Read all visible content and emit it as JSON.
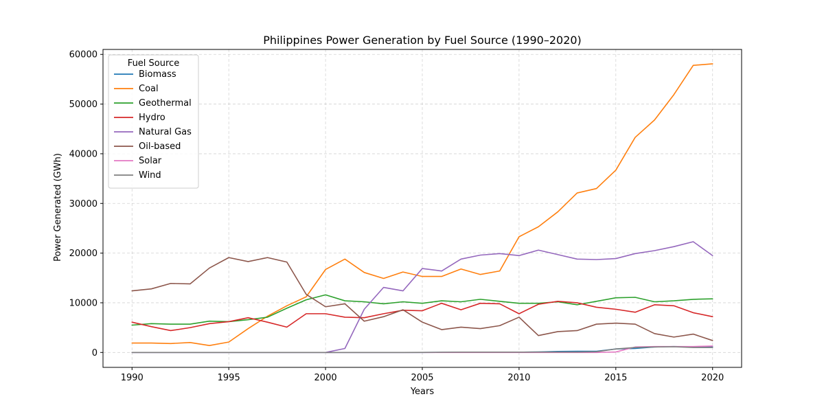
{
  "chart_data": {
    "type": "line",
    "title": "Philippines Power Generation by Fuel Source (1990–2020)",
    "xlabel": "Years",
    "ylabel": "Power Generated (GWh)",
    "xlim": [
      1988.5,
      2021.5
    ],
    "ylim": [
      -3000,
      61000
    ],
    "xticks": [
      1990,
      1995,
      2000,
      2005,
      2010,
      2015,
      2020
    ],
    "yticks": [
      0,
      10000,
      20000,
      30000,
      40000,
      50000,
      60000
    ],
    "grid": true,
    "legend": {
      "title": "Fuel Source",
      "placement": "top-left"
    },
    "x": [
      1990,
      1991,
      1992,
      1993,
      1994,
      1995,
      1996,
      1997,
      1998,
      1999,
      2000,
      2001,
      2002,
      2003,
      2004,
      2005,
      2006,
      2007,
      2008,
      2009,
      2010,
      2011,
      2012,
      2013,
      2014,
      2015,
      2016,
      2017,
      2018,
      2019,
      2020
    ],
    "series": [
      {
        "name": "Biomass",
        "color": "#1f77b4",
        "values": [
          0,
          0,
          0,
          0,
          0,
          0,
          0,
          0,
          0,
          0,
          0,
          0,
          0,
          0,
          0,
          0,
          20,
          30,
          40,
          50,
          60,
          100,
          200,
          250,
          250,
          700,
          800,
          1100,
          1200,
          1100,
          1100
        ]
      },
      {
        "name": "Coal",
        "color": "#ff7f0e",
        "values": [
          1900,
          1900,
          1800,
          2000,
          1400,
          2100,
          4800,
          7300,
          9400,
          11200,
          16700,
          18800,
          16100,
          14900,
          16200,
          15300,
          15300,
          16800,
          15700,
          16400,
          23300,
          25300,
          28300,
          32100,
          33000,
          36700,
          43300,
          46800,
          51900,
          57800,
          58100
        ]
      },
      {
        "name": "Geothermal",
        "color": "#2ca02c",
        "values": [
          5500,
          5800,
          5700,
          5700,
          6300,
          6200,
          6600,
          7100,
          8900,
          10600,
          11600,
          10400,
          10200,
          9800,
          10200,
          9900,
          10400,
          10200,
          10700,
          10300,
          9900,
          9900,
          10200,
          9600,
          10300,
          11000,
          11100,
          10200,
          10400,
          10700,
          10800
        ]
      },
      {
        "name": "Hydro",
        "color": "#d62728",
        "values": [
          6100,
          5200,
          4400,
          5000,
          5800,
          6200,
          7000,
          6100,
          5100,
          7800,
          7800,
          7100,
          7000,
          7800,
          8500,
          8400,
          9900,
          8600,
          9900,
          9800,
          7800,
          9700,
          10300,
          10000,
          9100,
          8700,
          8100,
          9600,
          9400,
          8000,
          7200
        ]
      },
      {
        "name": "Natural Gas",
        "color": "#9467bd",
        "values": [
          null,
          null,
          null,
          null,
          null,
          null,
          null,
          null,
          null,
          null,
          0,
          800,
          8700,
          13100,
          12400,
          16900,
          16400,
          18800,
          19600,
          19900,
          19500,
          20600,
          19700,
          18800,
          18700,
          18900,
          19900,
          20500,
          21300,
          22300,
          19500
        ]
      },
      {
        "name": "Oil-based",
        "color": "#8c564b",
        "values": [
          12400,
          12800,
          13900,
          13800,
          17000,
          19100,
          18300,
          19100,
          18200,
          11700,
          9200,
          9800,
          6300,
          7200,
          8600,
          6100,
          4600,
          5100,
          4800,
          5400,
          7100,
          3400,
          4200,
          4400,
          5700,
          5900,
          5700,
          3800,
          3100,
          3700,
          2400
        ]
      },
      {
        "name": "Solar",
        "color": "#e377c2",
        "values": [
          0,
          0,
          0,
          0,
          0,
          0,
          0,
          0,
          0,
          0,
          0,
          0,
          0,
          0,
          0,
          0,
          0,
          0,
          0,
          0,
          0,
          0,
          0,
          0,
          0,
          100,
          1100,
          1200,
          1200,
          1200,
          1300
        ]
      },
      {
        "name": "Wind",
        "color": "#7f7f7f",
        "values": [
          0,
          0,
          0,
          0,
          0,
          0,
          0,
          0,
          0,
          0,
          0,
          0,
          0,
          0,
          0,
          10,
          50,
          60,
          60,
          60,
          60,
          80,
          80,
          80,
          150,
          700,
          1000,
          1100,
          1150,
          1000,
          1000
        ]
      }
    ]
  }
}
